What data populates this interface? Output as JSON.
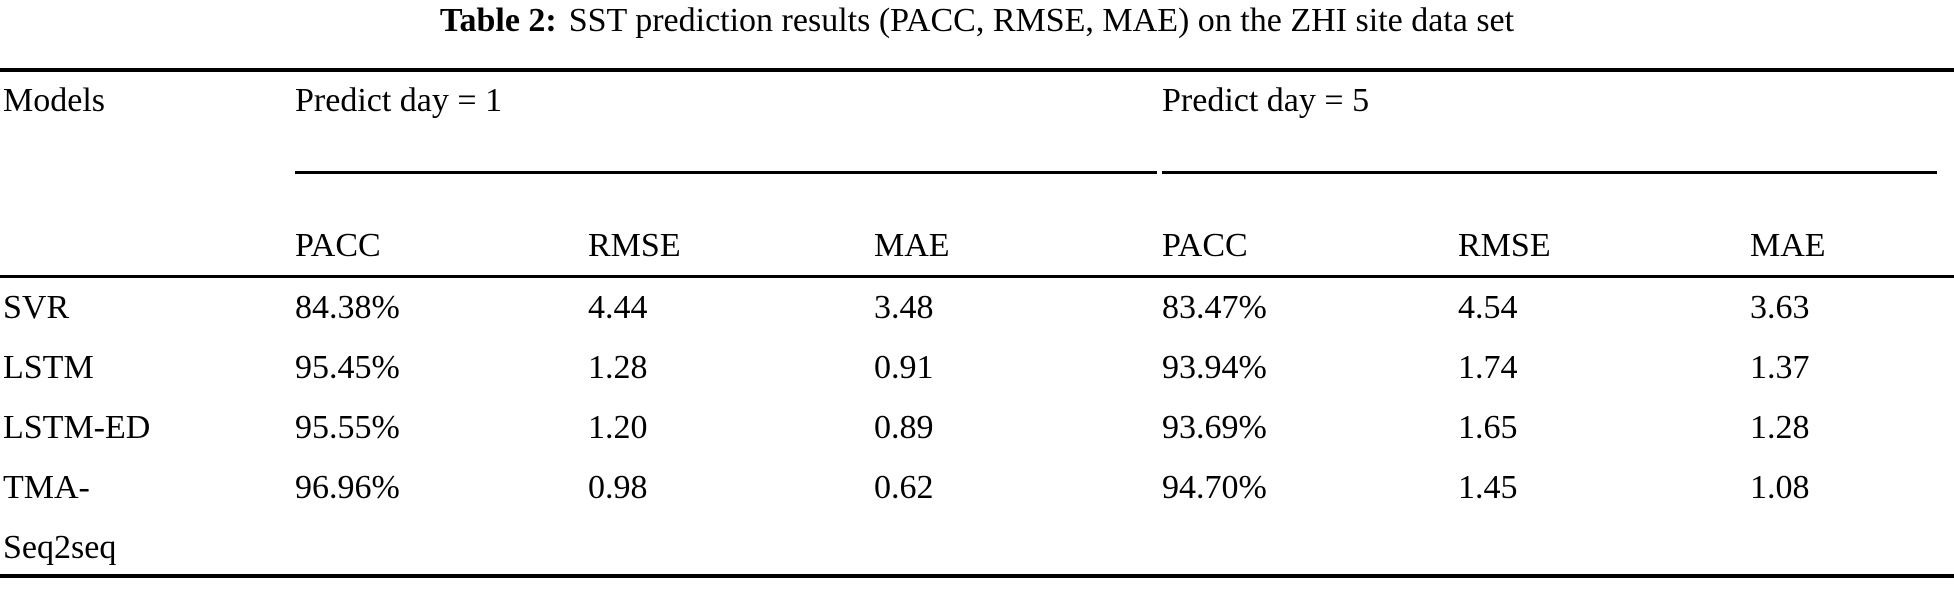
{
  "title": {
    "label": "Table 2:",
    "text": "SST prediction results (PACC, RMSE, MAE) on the ZHI site data set"
  },
  "table": {
    "col1_header": "Models",
    "groups": [
      {
        "label": "Predict day = 1"
      },
      {
        "label": "Predict day = 5"
      }
    ],
    "subheaders": [
      "PACC",
      "RMSE",
      "MAE",
      "PACC",
      "RMSE",
      "MAE"
    ],
    "rows": [
      {
        "model": "SVR",
        "values": [
          "84.38%",
          "4.44",
          "3.48",
          "83.47%",
          "4.54",
          "3.63"
        ]
      },
      {
        "model": "LSTM",
        "values": [
          "95.45%",
          "1.28",
          "0.91",
          "93.94%",
          "1.74",
          "1.37"
        ]
      },
      {
        "model": "LSTM-ED",
        "values": [
          "95.55%",
          "1.20",
          "0.89",
          "93.69%",
          "1.65",
          "1.28"
        ]
      },
      {
        "model": "TMA-\nSeq2seq",
        "values": [
          "96.96%",
          "0.98",
          "0.62",
          "94.70%",
          "1.45",
          "1.08"
        ]
      }
    ]
  }
}
